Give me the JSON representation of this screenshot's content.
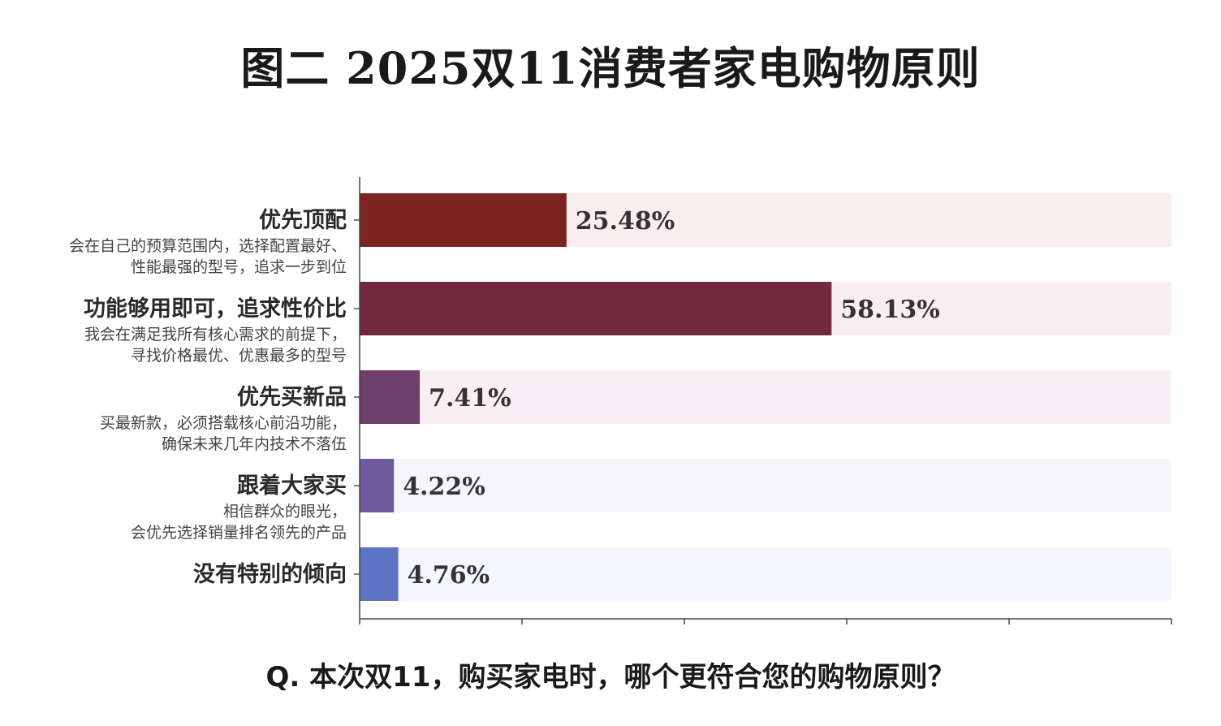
{
  "title": "图二 2025双11消费者家电购物原则",
  "question": "Q. 本次双11，购买家电时，哪个更符合您的购物原则？",
  "chart_data": {
    "type": "bar",
    "orientation": "horizontal",
    "xlim": [
      0,
      100
    ],
    "categories": [
      {
        "label": "优先顶配",
        "desc": [
          "会在自己的预算范围内，选择配置最好、",
          "性能最强的型号，追求一步到位"
        ],
        "value": 25.48,
        "value_label": "25.48%",
        "color": "#7b2420",
        "bg": "#f9eeef"
      },
      {
        "label": "功能够用即可，追求性价比",
        "desc": [
          "我会在满足我所有核心需求的前提下，",
          "寻找价格最优、优惠最多的型号"
        ],
        "value": 58.13,
        "value_label": "58.13%",
        "color": "#72283f",
        "bg": "#f8eef1"
      },
      {
        "label": "优先买新品",
        "desc": [
          "买最新款，必须搭载核心前沿功能，",
          "确保未来几年内技术不落伍"
        ],
        "value": 7.41,
        "value_label": "7.41%",
        "color": "#6d3f6b",
        "bg": "#f7eff3"
      },
      {
        "label": "跟着大家买",
        "desc": [
          "相信群众的眼光，",
          "会优先选择销量排名领先的产品"
        ],
        "value": 4.22,
        "value_label": "4.22%",
        "color": "#6e5a9c",
        "bg": "#f6f5fa"
      },
      {
        "label": "没有特别的倾向",
        "desc": [],
        "value": 4.76,
        "value_label": "4.76%",
        "color": "#5f73c3",
        "bg": "#f5f7fc"
      }
    ]
  }
}
